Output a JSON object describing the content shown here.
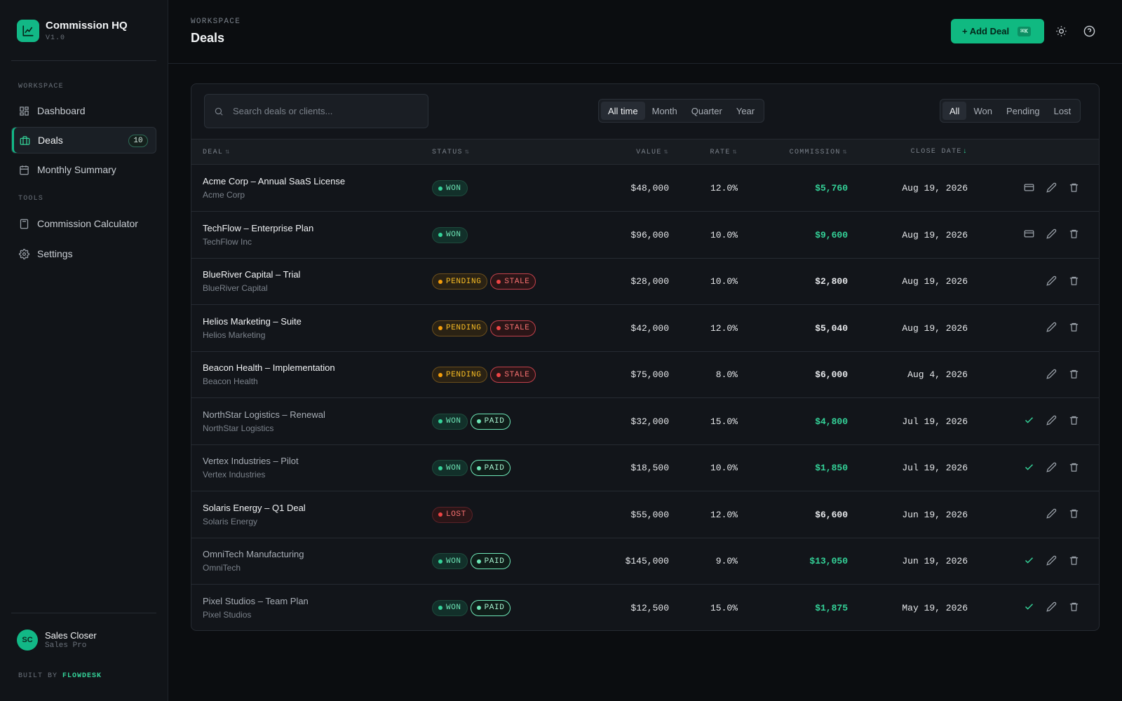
{
  "app": {
    "name": "Commission HQ",
    "version": "V1.0",
    "accent": "#12b886"
  },
  "sidebar": {
    "section_workspace": "WORKSPACE",
    "section_tools": "TOOLS",
    "items": [
      {
        "label": "Dashboard",
        "icon": "dashboard-icon"
      },
      {
        "label": "Deals",
        "icon": "briefcase-icon",
        "badge": "10",
        "active": true
      },
      {
        "label": "Monthly Summary",
        "icon": "calendar-icon"
      },
      {
        "label": "Commission Calculator",
        "icon": "calculator-icon"
      },
      {
        "label": "Settings",
        "icon": "gear-icon"
      }
    ],
    "user": {
      "initials": "SC",
      "name": "Sales Closer",
      "role": "Sales Pro"
    },
    "built_prefix": "BUILT BY",
    "built_brand": "FLOWDESK"
  },
  "header": {
    "breadcrumb": "WORKSPACE",
    "title": "Deals",
    "add_label": "+ Add Deal",
    "add_shortcut": "⌘K"
  },
  "toolbar": {
    "search_placeholder": "Search deals or clients...",
    "periods": [
      "All time",
      "Month",
      "Quarter",
      "Year"
    ],
    "period_selected": "All time",
    "statuses": [
      "All",
      "Won",
      "Pending",
      "Lost"
    ],
    "status_selected": "All"
  },
  "table": {
    "columns": {
      "deal": "DEAL",
      "status": "STATUS",
      "value": "VALUE",
      "rate": "RATE",
      "commission": "COMMISSION",
      "close_date": "CLOSE DATE"
    },
    "rows": [
      {
        "name": "Acme Corp – Annual SaaS License",
        "client": "Acme Corp",
        "tags": [
          "WON"
        ],
        "value": "$48,000",
        "rate": "12.0%",
        "commission": "$5,760",
        "green": true,
        "date": "Aug 19, 2026",
        "action": "card-icon",
        "dim": false
      },
      {
        "name": "TechFlow – Enterprise Plan",
        "client": "TechFlow Inc",
        "tags": [
          "WON"
        ],
        "value": "$96,000",
        "rate": "10.0%",
        "commission": "$9,600",
        "green": true,
        "date": "Aug 19, 2026",
        "action": "card-icon",
        "dim": false
      },
      {
        "name": "BlueRiver Capital – Trial",
        "client": "BlueRiver Capital",
        "tags": [
          "PENDING",
          "STALE"
        ],
        "value": "$28,000",
        "rate": "10.0%",
        "commission": "$2,800",
        "green": false,
        "date": "Aug 19, 2026",
        "action": "",
        "dim": false
      },
      {
        "name": "Helios Marketing – Suite",
        "client": "Helios Marketing",
        "tags": [
          "PENDING",
          "STALE"
        ],
        "value": "$42,000",
        "rate": "12.0%",
        "commission": "$5,040",
        "green": false,
        "date": "Aug 19, 2026",
        "action": "",
        "dim": false
      },
      {
        "name": "Beacon Health – Implementation",
        "client": "Beacon Health",
        "tags": [
          "PENDING",
          "STALE"
        ],
        "value": "$75,000",
        "rate": "8.0%",
        "commission": "$6,000",
        "green": false,
        "date": "Aug 4, 2026",
        "action": "",
        "dim": false
      },
      {
        "name": "NorthStar Logistics – Renewal",
        "client": "NorthStar Logistics",
        "tags": [
          "WON",
          "PAID"
        ],
        "value": "$32,000",
        "rate": "15.0%",
        "commission": "$4,800",
        "green": true,
        "date": "Jul 19, 2026",
        "action": "check-icon",
        "dim": true
      },
      {
        "name": "Vertex Industries – Pilot",
        "client": "Vertex Industries",
        "tags": [
          "WON",
          "PAID"
        ],
        "value": "$18,500",
        "rate": "10.0%",
        "commission": "$1,850",
        "green": true,
        "date": "Jul 19, 2026",
        "action": "check-icon",
        "dim": true
      },
      {
        "name": "Solaris Energy – Q1 Deal",
        "client": "Solaris Energy",
        "tags": [
          "LOST"
        ],
        "value": "$55,000",
        "rate": "12.0%",
        "commission": "$6,600",
        "green": false,
        "date": "Jun 19, 2026",
        "action": "",
        "dim": false
      },
      {
        "name": "OmniTech Manufacturing",
        "client": "OmniTech",
        "tags": [
          "WON",
          "PAID"
        ],
        "value": "$145,000",
        "rate": "9.0%",
        "commission": "$13,050",
        "green": true,
        "date": "Jun 19, 2026",
        "action": "check-icon",
        "dim": true
      },
      {
        "name": "Pixel Studios – Team Plan",
        "client": "Pixel Studios",
        "tags": [
          "WON",
          "PAID"
        ],
        "value": "$12,500",
        "rate": "15.0%",
        "commission": "$1,875",
        "green": true,
        "date": "May 19, 2026",
        "action": "check-icon",
        "dim": true
      }
    ]
  }
}
